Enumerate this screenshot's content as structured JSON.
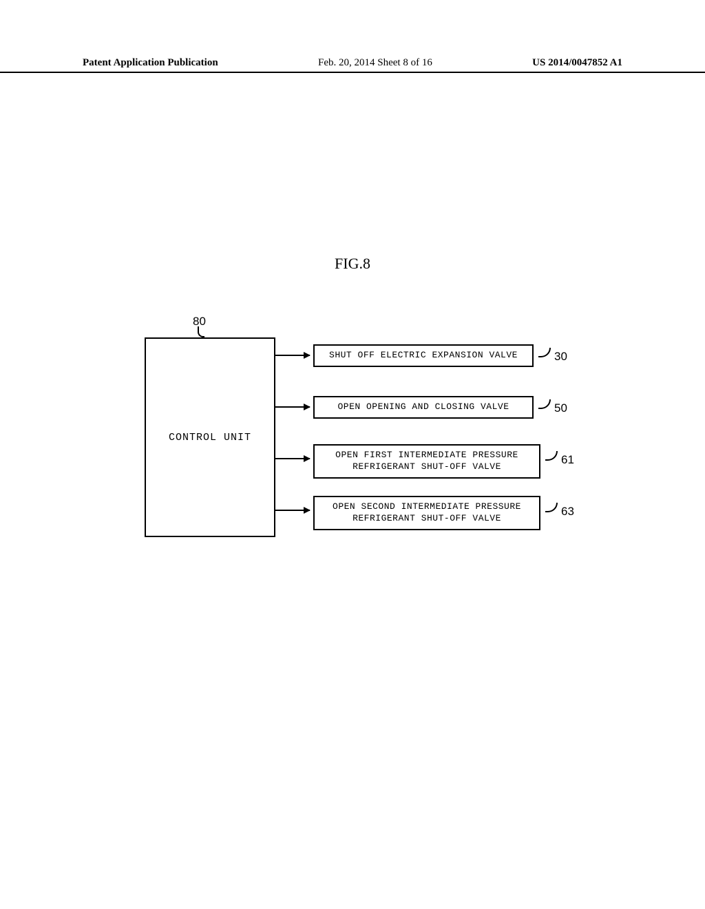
{
  "header": {
    "left": "Patent Application Publication",
    "center": "Feb. 20, 2014  Sheet 8 of 16",
    "right": "US 2014/0047852 A1"
  },
  "figure": {
    "title": "FIG.8"
  },
  "diagram": {
    "type": "flowchart",
    "control_box": {
      "label": "CONTROL UNIT",
      "annotation": "80"
    },
    "actions": [
      {
        "text": "SHUT OFF ELECTRIC EXPANSION VALVE",
        "ref": "30"
      },
      {
        "text": "OPEN OPENING AND CLOSING VALVE",
        "ref": "50"
      },
      {
        "text": "OPEN FIRST INTERMEDIATE PRESSURE\nREFRIGERANT SHUT-OFF VALVE",
        "ref": "61"
      },
      {
        "text": "OPEN SECOND INTERMEDIATE PRESSURE\nREFRIGERANT SHUT-OFF VALVE",
        "ref": "63"
      }
    ],
    "colors": {
      "background": "#ffffff",
      "line": "#000000",
      "text": "#000000"
    },
    "line_width": 2,
    "fonts": {
      "header": {
        "family": "Times New Roman",
        "size_pt": 11
      },
      "figure_title": {
        "family": "Times New Roman",
        "size_pt": 16
      },
      "box_text": {
        "family": "Courier New",
        "size_pt": 10
      },
      "annotation": {
        "family": "Arial",
        "size_pt": 13
      }
    }
  }
}
